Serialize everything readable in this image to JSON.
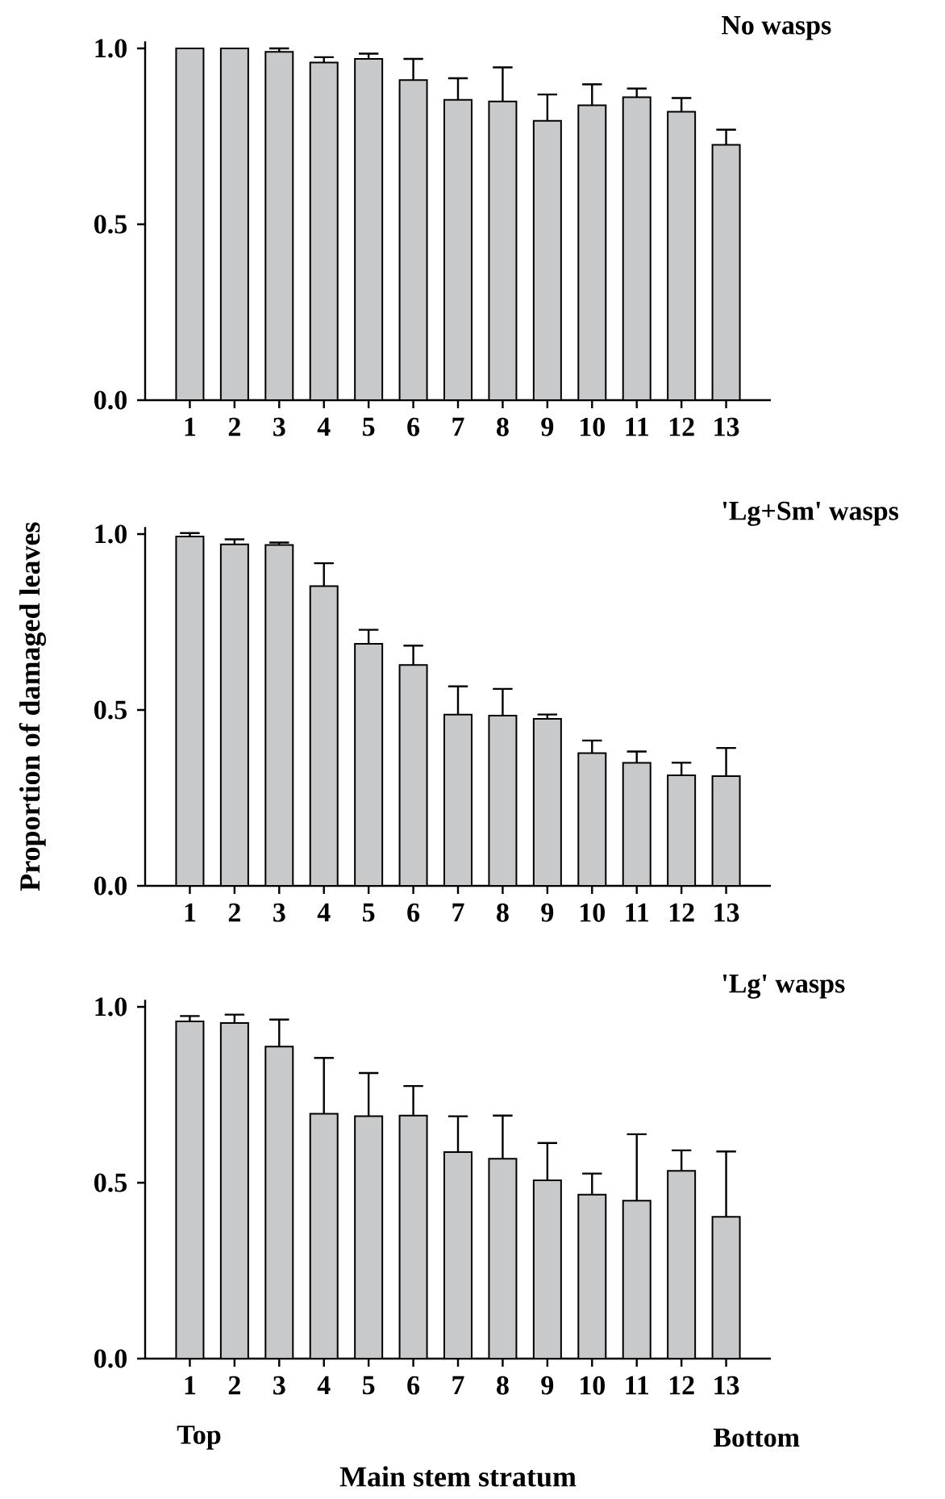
{
  "chart_data": [
    {
      "type": "bar",
      "title": "No wasps",
      "categories": [
        "1",
        "2",
        "3",
        "4",
        "5",
        "6",
        "7",
        "8",
        "9",
        "10",
        "11",
        "12",
        "13"
      ],
      "values": [
        1.0,
        1.0,
        0.99,
        0.96,
        0.97,
        0.91,
        0.854,
        0.849,
        0.794,
        0.838,
        0.861,
        0.82,
        0.726
      ],
      "errors": [
        null,
        null,
        [
          0.99,
          1.0
        ],
        [
          0.96,
          0.975
        ],
        [
          0.97,
          0.985
        ],
        [
          0.91,
          0.97
        ],
        [
          0.854,
          0.915
        ],
        [
          0.849,
          0.946
        ],
        [
          0.794,
          0.869
        ],
        [
          0.838,
          0.898
        ],
        [
          0.861,
          0.886
        ],
        [
          0.82,
          0.859
        ],
        [
          0.726,
          0.769
        ]
      ],
      "color": "#c8c9cb",
      "ylim": [
        0,
        1.02
      ],
      "yticks": [
        {
          "value": 0,
          "label": "0.0"
        },
        {
          "value": 0.5,
          "label": "0.5"
        },
        {
          "value": 1,
          "label": "1.0"
        }
      ]
    },
    {
      "type": "bar",
      "title": "'Lg+Sm' wasps",
      "ylabel": "Proportion of damaged leaves",
      "categories": [
        "1",
        "2",
        "3",
        "4",
        "5",
        "6",
        "7",
        "8",
        "9",
        "10",
        "11",
        "12",
        "13"
      ],
      "values": [
        0.993,
        0.971,
        0.969,
        0.852,
        0.688,
        0.628,
        0.487,
        0.484,
        0.475,
        0.377,
        0.35,
        0.314,
        0.312
      ],
      "errors": [
        [
          0.993,
          1.003
        ],
        [
          0.971,
          0.985
        ],
        [
          0.969,
          0.976
        ],
        [
          0.852,
          0.917
        ],
        [
          0.688,
          0.728
        ],
        [
          0.628,
          0.683
        ],
        [
          0.487,
          0.567
        ],
        [
          0.484,
          0.56
        ],
        [
          0.475,
          0.487
        ],
        [
          0.377,
          0.413
        ],
        [
          0.35,
          0.382
        ],
        [
          0.314,
          0.35
        ],
        [
          0.312,
          0.392
        ]
      ],
      "color": "#c8c9cb",
      "ylim": [
        0,
        1.02
      ],
      "yticks": [
        {
          "value": 0,
          "label": "0.0"
        },
        {
          "value": 0.5,
          "label": "0.5"
        },
        {
          "value": 1,
          "label": "1.0"
        }
      ]
    },
    {
      "type": "bar",
      "title": "'Lg' wasps",
      "xlabel": "Main stem stratum",
      "annotations": [
        "Top",
        "Bottom"
      ],
      "categories": [
        "1",
        "2",
        "3",
        "4",
        "5",
        "6",
        "7",
        "8",
        "9",
        "10",
        "11",
        "12",
        "13"
      ],
      "values": [
        0.959,
        0.954,
        0.887,
        0.696,
        0.689,
        0.691,
        0.587,
        0.568,
        0.507,
        0.466,
        0.449,
        0.534,
        0.403
      ],
      "errors": [
        [
          0.959,
          0.974
        ],
        [
          0.954,
          0.978
        ],
        [
          0.887,
          0.964
        ],
        [
          0.696,
          0.855
        ],
        [
          0.689,
          0.812
        ],
        [
          0.691,
          0.775
        ],
        [
          0.587,
          0.689
        ],
        [
          0.568,
          0.691
        ],
        [
          0.507,
          0.613
        ],
        [
          0.466,
          0.526
        ],
        [
          0.449,
          0.638
        ],
        [
          0.534,
          0.592
        ],
        [
          0.403,
          0.589
        ]
      ],
      "color": "#c8c9cb",
      "ylim": [
        0,
        1.02
      ],
      "yticks": [
        {
          "value": 0,
          "label": "0.0"
        },
        {
          "value": 0.5,
          "label": "0.5"
        },
        {
          "value": 1,
          "label": "1.0"
        }
      ]
    }
  ]
}
